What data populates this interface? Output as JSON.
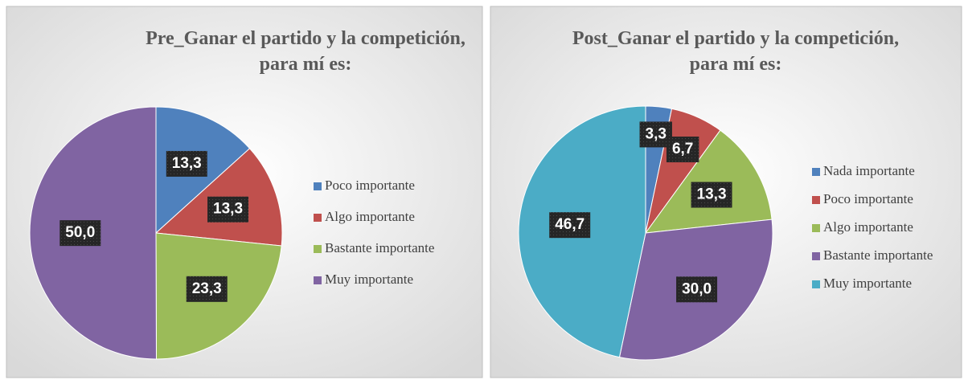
{
  "chart_data": [
    {
      "type": "pie",
      "title": [
        "Pre_Ganar el partido y la competición,",
        "para mí es:"
      ],
      "categories": [
        "Poco importante",
        "Algo importante",
        "Bastante importante",
        "Muy importante"
      ],
      "values": [
        13.3,
        13.3,
        23.3,
        50.0
      ],
      "value_labels": [
        "13,3",
        "13,3",
        "23,3",
        "50,0"
      ],
      "colors": [
        "#4f81bd",
        "#c0504d",
        "#9bbb59",
        "#8064a2"
      ],
      "legend": "right"
    },
    {
      "type": "pie",
      "title": [
        "Post_Ganar el partido y la competición,",
        "para mí es:"
      ],
      "categories": [
        "Nada importante",
        "Poco importante",
        "Algo importante",
        "Bastante importante",
        "Muy importante"
      ],
      "values": [
        3.3,
        6.7,
        13.3,
        30.0,
        46.7
      ],
      "value_labels": [
        "3,3",
        "6,7",
        "13,3",
        "30,0",
        "46,7"
      ],
      "colors": [
        "#4f81bd",
        "#c0504d",
        "#9bbb59",
        "#8064a2",
        "#4bacc6"
      ],
      "legend": "right"
    }
  ]
}
